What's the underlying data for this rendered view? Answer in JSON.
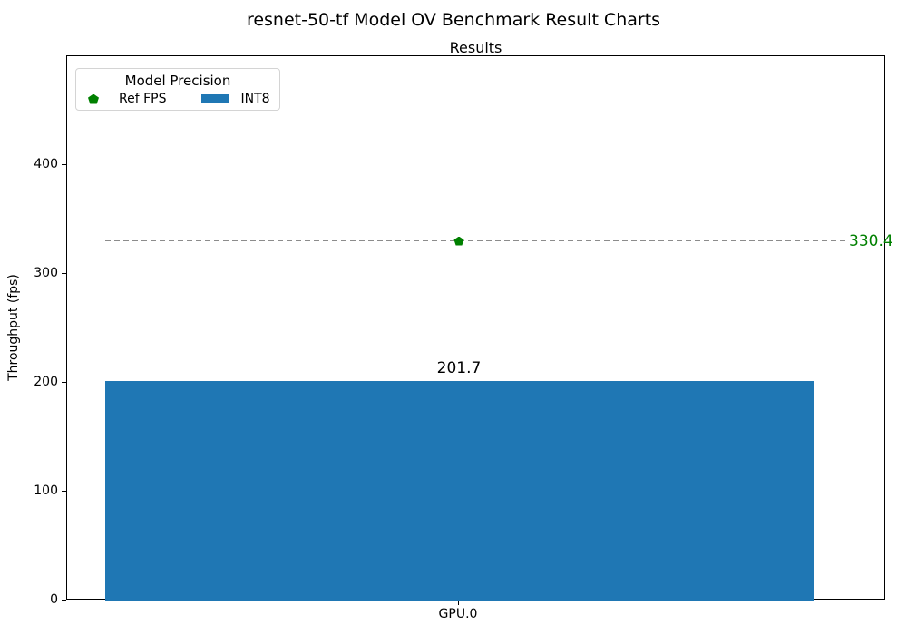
{
  "chart_data": {
    "type": "bar",
    "title": "resnet-50-tf Model OV Benchmark Result Charts",
    "axes_title": "Results",
    "xlabel": "",
    "ylabel": "Throughput (fps)",
    "categories": [
      "GPU.0"
    ],
    "series": [
      {
        "name": "INT8",
        "kind": "bar",
        "values": [
          201.7
        ],
        "color": "#1f77b4"
      },
      {
        "name": "Ref FPS",
        "kind": "reference-line",
        "values": [
          330.4
        ],
        "color": "#008000",
        "marker": "pentagon",
        "line_style": "dashed",
        "line_color": "#8c8c8c"
      }
    ],
    "ylim": [
      0,
      500
    ],
    "yticks": [
      0,
      100,
      200,
      300,
      400
    ],
    "grid": false,
    "legend": {
      "title": "Model Precision",
      "position": "upper left",
      "entries": [
        {
          "label": "Ref FPS",
          "marker": "pentagon",
          "color": "#008000"
        },
        {
          "label": "INT8",
          "marker": "rect",
          "color": "#1f77b4"
        }
      ]
    },
    "annotations": {
      "bar_value_label": "201.7",
      "ref_value_label": "330.4"
    }
  }
}
